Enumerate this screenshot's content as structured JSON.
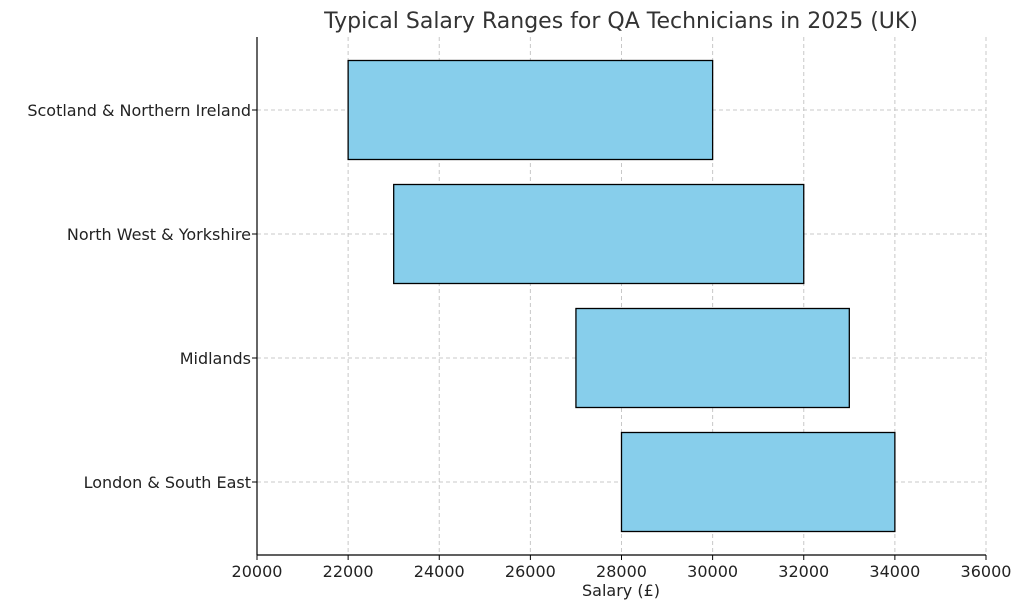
{
  "chart_data": {
    "type": "bar",
    "orientation": "horizontal",
    "title": "Typical Salary Ranges for QA Technicians in 2025 (UK)",
    "xlabel": "Salary (£)",
    "ylabel": "",
    "xlim": [
      20000,
      36000
    ],
    "xticks": [
      20000,
      22000,
      24000,
      26000,
      28000,
      30000,
      32000,
      34000,
      36000
    ],
    "grid": true,
    "bar_color": "#87CEEB",
    "bar_edge_color": "#000000",
    "categories": [
      "London & South East",
      "Midlands",
      "North West & Yorkshire",
      "Scotland & Northern Ireland"
    ],
    "ranges": [
      {
        "category": "London & South East",
        "min": 28000,
        "max": 34000
      },
      {
        "category": "Midlands",
        "min": 27000,
        "max": 33000
      },
      {
        "category": "North West & Yorkshire",
        "min": 23000,
        "max": 32000
      },
      {
        "category": "Scotland & Northern Ireland",
        "min": 22000,
        "max": 30000
      }
    ]
  }
}
